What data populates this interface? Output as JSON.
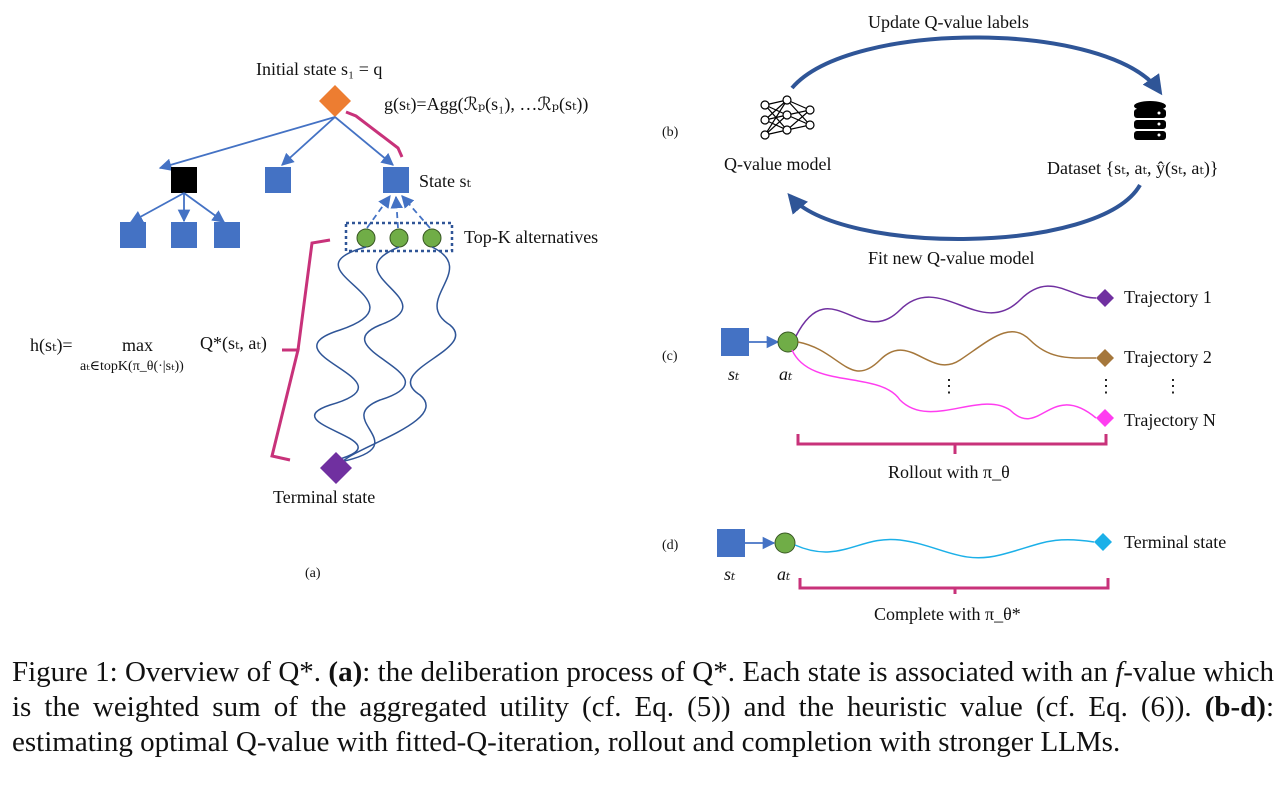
{
  "panel_a": {
    "initial_state": "Initial state s₁ = q",
    "g_formula": "g(sₜ)=Agg(ℛₚ(s₁), …ℛₚ(sₜ))",
    "state_label": "State sₜ",
    "topk_label": "Top-K alternatives",
    "h_formula_left": "h(sₜ)=",
    "h_max": "max",
    "h_sub": "aₜ∈topK(π_θ(·|sₜ))",
    "h_q": "Q*(sₜ, aₜ)",
    "terminal": "Terminal state",
    "panel_label": "(a)"
  },
  "panel_b": {
    "panel_label": "(b)",
    "top_arrow": "Update Q-value labels",
    "model": "Q-value model",
    "dataset": "Dataset {sₜ, aₜ, ŷ(sₜ, aₜ)}",
    "bottom_arrow": "Fit new Q-value model"
  },
  "panel_c": {
    "panel_label": "(c)",
    "s_label": "sₜ",
    "a_label": "aₜ",
    "traj1": "Trajectory 1",
    "traj2": "Trajectory 2",
    "trajN": "Trajectory N",
    "rollout": "Rollout with π_θ",
    "vdots": "⋮"
  },
  "panel_d": {
    "panel_label": "(d)",
    "s_label": "sₜ",
    "a_label": "aₜ",
    "terminal": "Terminal state",
    "complete": "Complete with π_θ*"
  },
  "caption": {
    "prefix": "Figure 1: Overview of Q*. ",
    "a_tag": "(a)",
    "a_text": ": the deliberation process of Q*. Each state is associated with an ",
    "f_var": "f",
    "a_text2": "-value which is the weighted sum of the aggregated utility (cf. Eq. (5)) and the heuristic value (cf. Eq. (6)). ",
    "bd_tag": "(b-d)",
    "bd_text": ": estimating optimal Q-value with fitted-Q-iteration, rollout and completion with stronger LLMs."
  },
  "colors": {
    "blue_square": "#4472c4",
    "orange_diamond": "#ed7d31",
    "green_circle": "#70ad47",
    "purple_diamond": "#7030a0",
    "brown_diamond": "#a5773b",
    "magenta": "#ff3df0",
    "cyan": "#1cb0e8",
    "bracket_pink": "#c8327a",
    "dark_arrow": "#2f5597"
  }
}
